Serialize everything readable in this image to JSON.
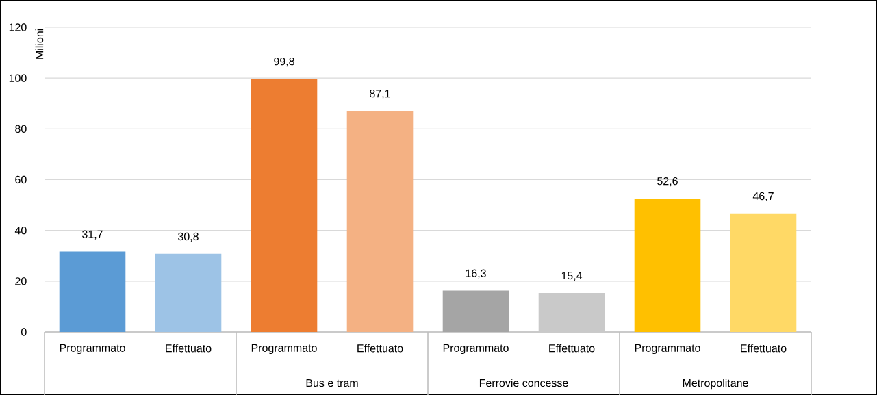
{
  "chart_data": {
    "type": "bar",
    "ylabel": "Milioni",
    "categories": [
      "Programmato",
      "Effettuato",
      "Programmato",
      "Effettuato",
      "Programmato",
      "Effettuato",
      "Programmato",
      "Effettuato"
    ],
    "values": [
      31.7,
      30.8,
      99.8,
      87.1,
      16.3,
      15.4,
      52.6,
      46.7
    ],
    "colors": [
      "#5b9bd5",
      "#9dc3e6",
      "#ed7d31",
      "#f4b183",
      "#a5a5a5",
      "#c9c9c9",
      "#ffc000",
      "#ffd966"
    ],
    "value_labels": [
      "31,7",
      "30,8",
      "99,8",
      "87,1",
      "16,3",
      "15,4",
      "52,6",
      "46,7"
    ],
    "annotations": [
      "Bus e tram",
      "Ferrovie concesse",
      "Metropolitane"
    ],
    "ylim": [
      0,
      120
    ],
    "yticks": [
      0,
      20,
      40,
      60,
      80,
      100,
      120
    ],
    "grid": "y"
  }
}
